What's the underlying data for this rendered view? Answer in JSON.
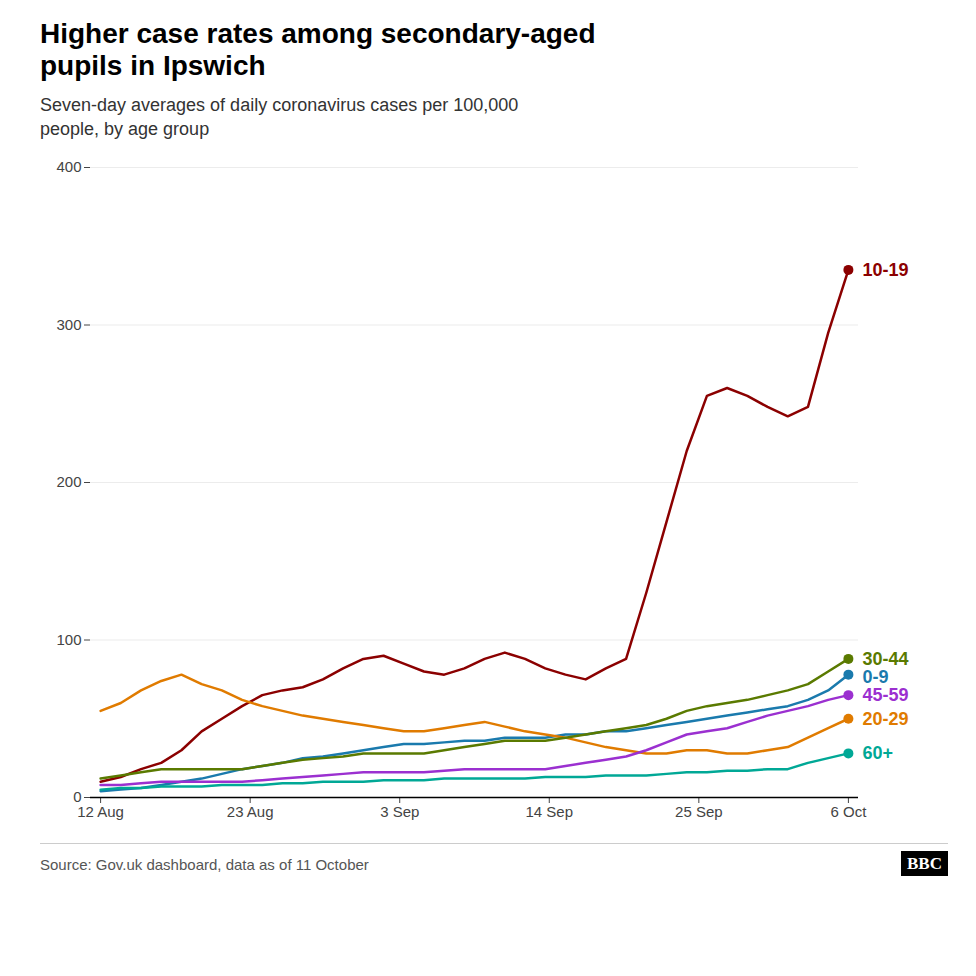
{
  "chart_data": {
    "type": "line",
    "title": "Higher case rates among secondary-aged\npupils in Ipswich",
    "subtitle": "Seven-day averages of daily coronavirus cases per 100,000\npeople, by age group",
    "source": "Source: Gov.uk dashboard, data as of 11 October",
    "annotations": [
      {
        "text": "BBC"
      }
    ],
    "xlim": [
      -0.5,
      37.5
    ],
    "xticks": [
      {
        "value": 0,
        "label": "12 Aug"
      },
      {
        "value": 7.4,
        "label": "23 Aug"
      },
      {
        "value": 14.8,
        "label": "3 Sep"
      },
      {
        "value": 22.2,
        "label": "14 Sep"
      },
      {
        "value": 29.6,
        "label": "25 Sep"
      },
      {
        "value": 37,
        "label": "6 Oct"
      }
    ],
    "ylim": [
      0,
      400
    ],
    "yticks": [
      0,
      100,
      200,
      300,
      400
    ],
    "grid": true,
    "series": [
      {
        "name": "10-19",
        "color": "#8B0000",
        "values": [
          10,
          13,
          18,
          22,
          30,
          42,
          50,
          58,
          65,
          68,
          70,
          75,
          82,
          88,
          90,
          85,
          80,
          78,
          82,
          88,
          92,
          88,
          82,
          78,
          75,
          82,
          88,
          130,
          175,
          220,
          255,
          260,
          255,
          248,
          242,
          248,
          295,
          335
        ]
      },
      {
        "name": "0-9",
        "color": "#1a7aad",
        "values": [
          4,
          5,
          6,
          8,
          10,
          12,
          15,
          18,
          20,
          22,
          25,
          26,
          28,
          30,
          32,
          34,
          34,
          35,
          36,
          36,
          38,
          38,
          38,
          40,
          40,
          42,
          42,
          44,
          46,
          48,
          50,
          52,
          54,
          56,
          58,
          62,
          68,
          78
        ]
      },
      {
        "name": "20-29",
        "color": "#e07b00",
        "values": [
          55,
          60,
          68,
          74,
          78,
          72,
          68,
          62,
          58,
          55,
          52,
          50,
          48,
          46,
          44,
          42,
          42,
          44,
          46,
          48,
          45,
          42,
          40,
          38,
          35,
          32,
          30,
          28,
          28,
          30,
          30,
          28,
          28,
          30,
          32,
          38,
          44,
          50
        ]
      },
      {
        "name": "30-44",
        "color": "#5a7a00",
        "values": [
          12,
          14,
          16,
          18,
          18,
          18,
          18,
          18,
          20,
          22,
          24,
          25,
          26,
          28,
          28,
          28,
          28,
          30,
          32,
          34,
          36,
          36,
          36,
          38,
          40,
          42,
          44,
          46,
          50,
          55,
          58,
          60,
          62,
          65,
          68,
          72,
          80,
          88
        ]
      },
      {
        "name": "45-59",
        "color": "#9b30d0",
        "values": [
          8,
          8,
          9,
          10,
          10,
          10,
          10,
          10,
          11,
          12,
          13,
          14,
          15,
          16,
          16,
          16,
          16,
          17,
          18,
          18,
          18,
          18,
          18,
          20,
          22,
          24,
          26,
          30,
          35,
          40,
          42,
          44,
          48,
          52,
          55,
          58,
          62,
          65
        ]
      },
      {
        "name": "60+",
        "color": "#00a896",
        "values": [
          5,
          6,
          6,
          7,
          7,
          7,
          8,
          8,
          8,
          9,
          9,
          10,
          10,
          10,
          11,
          11,
          11,
          12,
          12,
          12,
          12,
          12,
          13,
          13,
          13,
          14,
          14,
          14,
          15,
          16,
          16,
          17,
          17,
          18,
          18,
          22,
          25,
          28
        ]
      }
    ]
  }
}
